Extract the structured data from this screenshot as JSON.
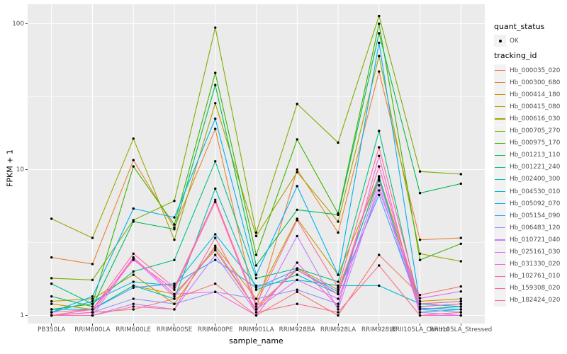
{
  "chart_data": {
    "type": "line",
    "xlabel": "sample_name",
    "ylabel": "FPKM + 1",
    "y_scale": "log10",
    "y_ticks": [
      1,
      10,
      100
    ],
    "y_minor_ticks": [
      3.162,
      31.623
    ],
    "ylim": [
      0.93,
      135
    ],
    "grid": "on",
    "panel_bg": "#EBEBEB",
    "gridline_color": "#FFFFFF",
    "point_color": "#000000",
    "legend_position": "right",
    "categories": [
      "PB350LA",
      "RRIM600LA",
      "RRIM600LE",
      "RRIM600SE",
      "RRIM600PE",
      "RRIM901LA",
      "RRIM928BA",
      "RRIM928LA",
      "RRIM928LE",
      "RRII105LA_Control",
      "RRII105LA_Stressed"
    ],
    "legend": {
      "quant_status_title": "quant_status",
      "ok_label": "OK",
      "tracking_title": "tracking_id"
    },
    "series": [
      {
        "name": "Hb_000035_020",
        "color": "#F8766D",
        "values": [
          1.0,
          1.05,
          1.1,
          1.3,
          1.65,
          1.0,
          1.45,
          1.0,
          2.6,
          1.38,
          1.58
        ]
      },
      {
        "name": "Hb_000300_680",
        "color": "#EA8331",
        "values": [
          2.5,
          2.25,
          11.6,
          4.0,
          19.0,
          1.1,
          10.0,
          3.7,
          47.0,
          3.3,
          3.4
        ]
      },
      {
        "name": "Hb_000414_180",
        "color": "#D89000",
        "values": [
          1.2,
          1.1,
          1.6,
          1.4,
          2.8,
          1.1,
          2.1,
          1.5,
          8.6,
          1.15,
          1.2
        ]
      },
      {
        "name": "Hb_000415_080",
        "color": "#C09B00",
        "values": [
          1.25,
          1.3,
          1.9,
          1.2,
          3.0,
          1.3,
          4.6,
          1.9,
          8.9,
          1.25,
          1.3
        ]
      },
      {
        "name": "Hb_000616_030",
        "color": "#A3A500",
        "values": [
          4.6,
          3.4,
          16.3,
          3.3,
          28.5,
          3.5,
          9.6,
          4.4,
          60.0,
          2.65,
          2.35
        ]
      },
      {
        "name": "Hb_000705_270",
        "color": "#7CAE00",
        "values": [
          1.8,
          1.75,
          4.5,
          6.1,
          94.0,
          3.7,
          28.2,
          15.3,
          113.0,
          9.7,
          9.3
        ]
      },
      {
        "name": "Hb_000975_170",
        "color": "#39B600",
        "values": [
          1.1,
          1.2,
          10.5,
          4.2,
          46.0,
          2.6,
          16.1,
          5.0,
          100.0,
          2.4,
          3.1
        ]
      },
      {
        "name": "Hb_001213_110",
        "color": "#00BB4E",
        "values": [
          1.35,
          1.15,
          4.4,
          3.9,
          38.0,
          2.2,
          5.3,
          4.9,
          86.0,
          6.9,
          8.0
        ]
      },
      {
        "name": "Hb_001221_240",
        "color": "#00C087",
        "values": [
          1.65,
          1.2,
          2.0,
          2.4,
          11.4,
          1.8,
          2.1,
          1.7,
          18.4,
          1.1,
          1.15
        ]
      },
      {
        "name": "Hb_002400_300",
        "color": "#00C0AF",
        "values": [
          1.1,
          1.1,
          1.6,
          1.3,
          7.4,
          1.5,
          1.9,
          1.4,
          9.0,
          1.05,
          1.1
        ]
      },
      {
        "name": "Hb_004530_010",
        "color": "#00BCD8",
        "values": [
          1.05,
          1.25,
          1.7,
          1.6,
          3.6,
          1.6,
          1.75,
          1.6,
          1.6,
          1.2,
          1.25
        ]
      },
      {
        "name": "Hb_005092_070",
        "color": "#00B0F6",
        "values": [
          1.05,
          1.35,
          5.4,
          4.7,
          22.3,
          1.9,
          7.7,
          1.9,
          74.0,
          1.2,
          1.15
        ]
      },
      {
        "name": "Hb_005154_090",
        "color": "#35A2FF",
        "values": [
          1.0,
          1.1,
          1.55,
          1.65,
          2.4,
          1.55,
          2.05,
          1.45,
          6.7,
          1.12,
          1.1
        ]
      },
      {
        "name": "Hb_006483_120",
        "color": "#9590FF",
        "values": [
          1.0,
          1.05,
          1.3,
          1.2,
          1.45,
          1.3,
          1.5,
          1.2,
          8.4,
          1.1,
          1.05
        ]
      },
      {
        "name": "Hb_010721_040",
        "color": "#C77CFF",
        "values": [
          1.0,
          1.0,
          1.2,
          1.1,
          2.6,
          1.05,
          3.5,
          1.1,
          7.8,
          1.05,
          1.0
        ]
      },
      {
        "name": "Hb_025161_030",
        "color": "#E76BF3",
        "values": [
          1.0,
          1.0,
          2.45,
          1.35,
          2.9,
          1.1,
          1.75,
          1.3,
          7.2,
          1.31,
          1.46
        ]
      },
      {
        "name": "Hb_031330_020",
        "color": "#FA62DB",
        "values": [
          1.0,
          1.05,
          2.5,
          1.4,
          1.45,
          1.0,
          2.3,
          1.15,
          12.4,
          1.0,
          1.0
        ]
      },
      {
        "name": "Hb_102761_010",
        "color": "#FF62BC",
        "values": [
          1.05,
          1.1,
          2.4,
          1.5,
          6.0,
          1.15,
          2.05,
          1.4,
          10.5,
          1.15,
          1.2
        ]
      },
      {
        "name": "Hb_159308_020",
        "color": "#FF6A98",
        "values": [
          1.0,
          1.1,
          2.65,
          1.55,
          6.2,
          1.2,
          4.5,
          1.55,
          14.2,
          1.2,
          1.25
        ]
      },
      {
        "name": "Hb_182424_020",
        "color": "#FF6C91",
        "values": [
          1.0,
          1.0,
          1.15,
          1.1,
          3.4,
          1.05,
          1.2,
          1.05,
          2.2,
          1.0,
          1.05
        ]
      }
    ]
  }
}
